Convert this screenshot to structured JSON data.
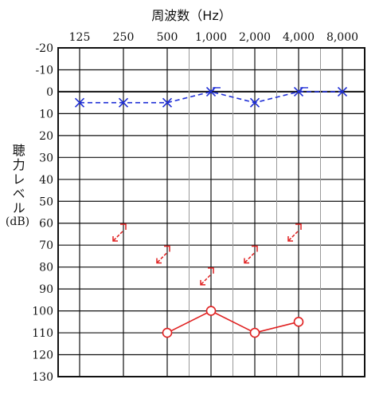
{
  "chart_data": {
    "type": "line",
    "title": "周波数（Hz）",
    "ylabel": "聴力レベル",
    "ylabel_unit": "(dB)",
    "x_ticks": [
      "125",
      "250",
      "500",
      "1,000",
      "2,000",
      "4,000",
      "8,000"
    ],
    "x_values": [
      125,
      250,
      500,
      1000,
      2000,
      4000,
      8000
    ],
    "y_ticks": [
      "-20",
      "-10",
      "0",
      "10",
      "20",
      "30",
      "40",
      "50",
      "60",
      "70",
      "80",
      "90",
      "100",
      "110",
      "120",
      "130"
    ],
    "ylim": [
      -20,
      130
    ],
    "y_inverted": true,
    "x_scale": "log",
    "grid": true,
    "series": [
      {
        "marker": "cross",
        "line": "dashed",
        "color": "#1f2fd6",
        "points": [
          {
            "x": 125,
            "y": 5
          },
          {
            "x": 250,
            "y": 5
          },
          {
            "x": 500,
            "y": 5
          },
          {
            "x": 1000,
            "y": 0
          },
          {
            "x": 2000,
            "y": 5
          },
          {
            "x": 4000,
            "y": 0
          },
          {
            "x": 8000,
            "y": 0
          }
        ]
      },
      {
        "marker": "circle",
        "line": "solid",
        "color": "#e02020",
        "points": [
          {
            "x": 500,
            "y": 110
          },
          {
            "x": 1000,
            "y": 100
          },
          {
            "x": 2000,
            "y": 110
          },
          {
            "x": 4000,
            "y": 105
          }
        ]
      },
      {
        "marker": "bone-arrow",
        "line": "none",
        "color": "#e02020",
        "points": [
          {
            "x": 250,
            "y": 63
          },
          {
            "x": 500,
            "y": 73
          },
          {
            "x": 1000,
            "y": 83
          },
          {
            "x": 2000,
            "y": 73
          },
          {
            "x": 4000,
            "y": 63
          }
        ]
      }
    ]
  }
}
